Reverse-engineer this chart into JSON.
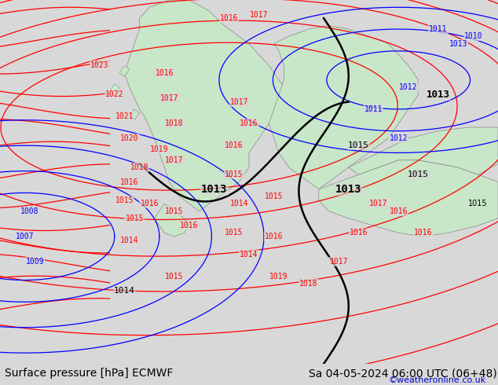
{
  "title_left": "Surface pressure [hPa] ECMWF",
  "title_right": "Sa 04-05-2024 06:00 UTC (06+48)",
  "watermark": "©weatheronline.co.uk",
  "bg_color": "#d8d8d8",
  "land_color": "#c8e6c8",
  "fig_width": 6.34,
  "fig_height": 4.9,
  "dpi": 100,
  "bottom_bar_color": "#f0f0f0",
  "bottom_bar_height": 0.055,
  "title_fontsize": 10,
  "watermark_color": "#0000cc",
  "watermark_fontsize": 8
}
